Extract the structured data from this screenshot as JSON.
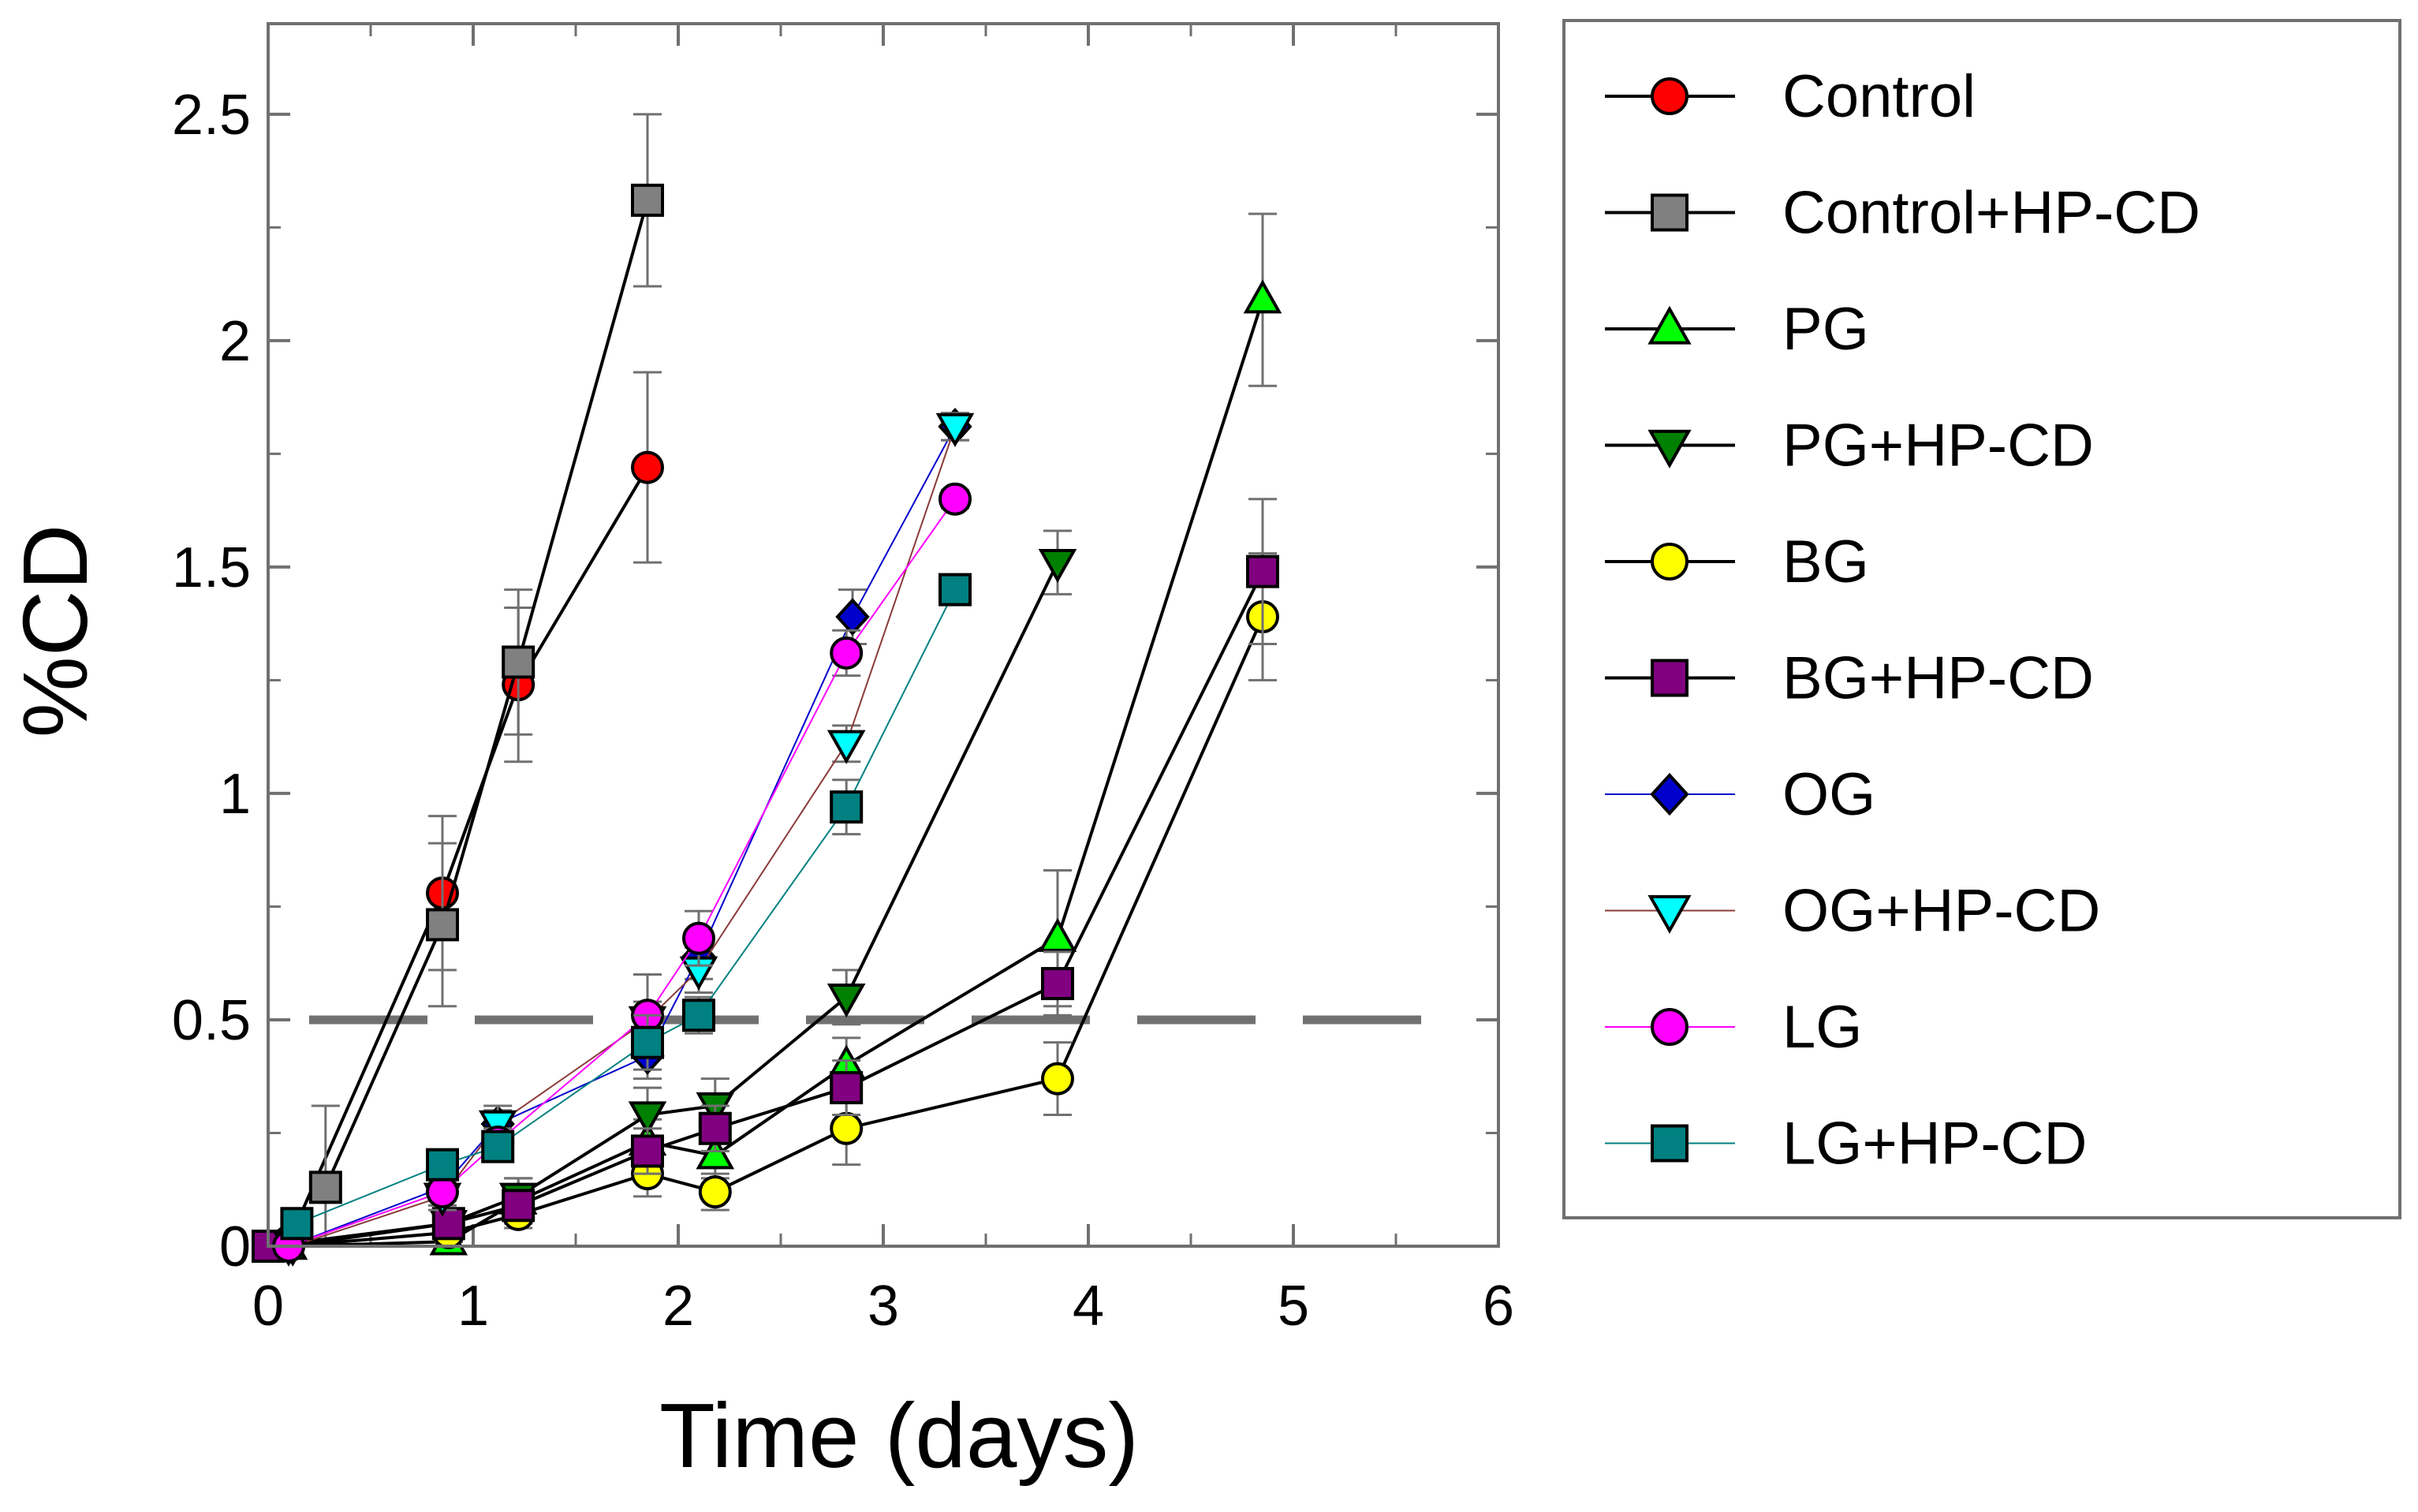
{
  "chart_data": {
    "type": "line",
    "title": "",
    "xlabel": "Time (days)",
    "ylabel": "%CD",
    "xlim": [
      0,
      6
    ],
    "ylim": [
      0,
      2.7
    ],
    "xticks": [
      0,
      1,
      2,
      3,
      4,
      5,
      6
    ],
    "yticks": [
      0,
      0.5,
      1,
      1.5,
      2,
      2.5
    ],
    "xtick_labels": [
      "0",
      "1",
      "2",
      "3",
      "4",
      "5",
      "6"
    ],
    "ytick_labels": [
      "0",
      "0.5",
      "1",
      "1.5",
      "2",
      "2.5"
    ],
    "grid": false,
    "legend_position": "right, outside plot area",
    "reference_line": {
      "y": 0.5,
      "style": "dashed",
      "color": "#707070"
    },
    "series": [
      {
        "name": "Control",
        "marker": "circle",
        "color": "#ff0000",
        "line_color": "#000000",
        "x": [
          0.1,
          0.85,
          1.22,
          1.85
        ],
        "y": [
          0.01,
          0.78,
          1.24,
          1.72
        ],
        "err": [
          0.02,
          0.17,
          0.17,
          0.21
        ]
      },
      {
        "name": "Control+HP-CD",
        "marker": "square",
        "color": "#808080",
        "line_color": "#000000",
        "x": [
          0.28,
          0.85,
          1.22,
          1.85
        ],
        "y": [
          0.13,
          0.71,
          1.29,
          2.31
        ],
        "err": [
          0.18,
          0.18,
          0.16,
          0.19
        ]
      },
      {
        "name": "PG",
        "marker": "triangle-up",
        "color": "#00ff00",
        "line_color": "#000000",
        "x": [
          0.1,
          0.88,
          1.22,
          1.85,
          2.18,
          2.82,
          3.85,
          4.85
        ],
        "y": [
          0.0,
          0.01,
          0.1,
          0.23,
          0.2,
          0.4,
          0.68,
          2.09
        ],
        "err": [
          0.01,
          0.02,
          0.05,
          0.05,
          0.05,
          0.06,
          0.15,
          0.19
        ]
      },
      {
        "name": "PG+HP-CD",
        "marker": "triangle-down",
        "color": "#008000",
        "line_color": "#000000",
        "x": [
          0.1,
          0.88,
          1.22,
          1.85,
          2.18,
          2.82,
          3.85
        ],
        "y": [
          0.0,
          0.05,
          0.11,
          0.29,
          0.31,
          0.55,
          1.51
        ],
        "err": [
          0.01,
          0.02,
          0.04,
          0.06,
          0.06,
          0.06,
          0.07
        ]
      },
      {
        "name": "BG",
        "marker": "circle",
        "color": "#ffff00",
        "line_color": "#000000",
        "x": [
          0.1,
          0.88,
          1.22,
          1.85,
          2.18,
          2.82,
          3.85,
          4.85
        ],
        "y": [
          0.0,
          0.03,
          0.07,
          0.16,
          0.12,
          0.26,
          0.37,
          1.39
        ],
        "err": [
          0.01,
          0.02,
          0.03,
          0.05,
          0.04,
          0.08,
          0.08,
          0.14
        ]
      },
      {
        "name": "BG+HP-CD",
        "marker": "square",
        "color": "#800080",
        "line_color": "#000000",
        "x": [
          0.0,
          0.88,
          1.22,
          1.85,
          2.18,
          2.82,
          3.85,
          4.85
        ],
        "y": [
          0.0,
          0.05,
          0.09,
          0.21,
          0.26,
          0.35,
          0.58,
          1.49
        ],
        "err": [
          0.01,
          0.02,
          0.03,
          0.05,
          0.05,
          0.06,
          0.07,
          0.16
        ]
      },
      {
        "name": "OG",
        "marker": "diamond",
        "color": "#0000cd",
        "line_color": "#0000cd",
        "x": [
          0.1,
          0.85,
          1.12,
          1.85,
          2.1,
          2.85,
          3.35
        ],
        "y": [
          0.0,
          0.13,
          0.27,
          0.42,
          0.64,
          1.39,
          1.81
        ],
        "err": [
          0.01,
          0.03,
          0.03,
          0.05,
          0.05,
          0.06,
          0.03
        ]
      },
      {
        "name": "OG+HP-CD",
        "marker": "triangle-down",
        "color": "#00ffff",
        "line_color": "#8b3a3a",
        "x": [
          0.12,
          0.85,
          1.12,
          1.85,
          2.1,
          2.82,
          3.35
        ],
        "y": [
          0.0,
          0.11,
          0.27,
          0.5,
          0.61,
          1.11,
          1.81
        ],
        "err": [
          0.01,
          0.03,
          0.04,
          0.04,
          0.05,
          0.04,
          0.03
        ]
      },
      {
        "name": "LG",
        "marker": "circle",
        "color": "#ff00ff",
        "line_color": "#ff00ff",
        "x": [
          0.1,
          0.85,
          1.12,
          1.85,
          2.1,
          2.82,
          3.35
        ],
        "y": [
          0.0,
          0.12,
          0.23,
          0.51,
          0.68,
          1.31,
          1.65
        ],
        "err": [
          0.01,
          0.03,
          0.03,
          0.09,
          0.06,
          0.05,
          0.02
        ]
      },
      {
        "name": "LG+HP-CD",
        "marker": "square",
        "color": "#008080",
        "line_color": "#008080",
        "x": [
          0.14,
          0.85,
          1.12,
          1.85,
          2.1,
          2.82,
          3.35
        ],
        "y": [
          0.05,
          0.18,
          0.22,
          0.45,
          0.51,
          0.97,
          1.45
        ],
        "err": [
          0.01,
          0.03,
          0.03,
          0.06,
          0.04,
          0.06,
          0.02
        ]
      }
    ]
  }
}
